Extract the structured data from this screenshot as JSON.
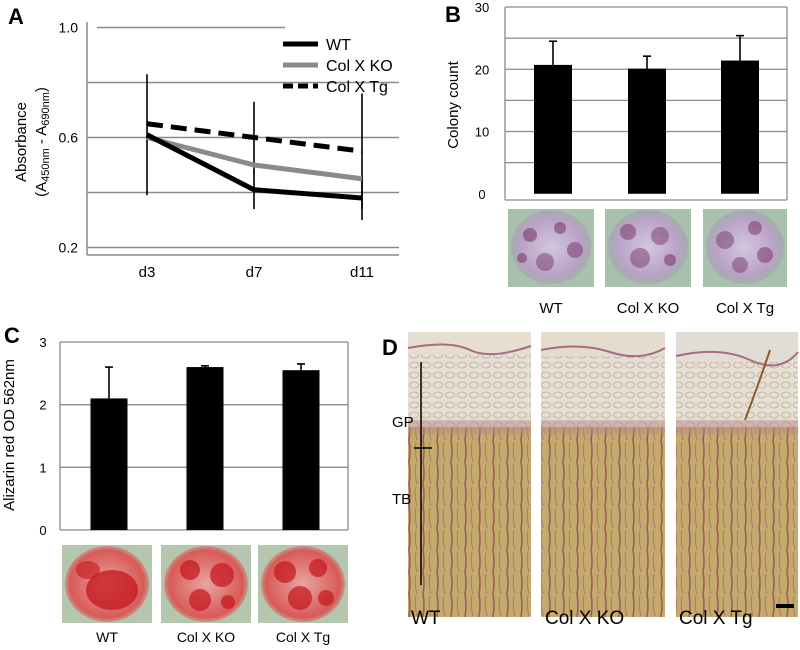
{
  "panels": {
    "a": "A",
    "b": "B",
    "c": "C",
    "d": "D"
  },
  "chart_data": [
    {
      "type": "line",
      "panel": "A",
      "ylabel_main": "Absorbance",
      "ylabel_sub": {
        "A": "A",
        "s1": "450nm",
        "dash": " - A",
        "s2": "690nm",
        "close": ")",
        "open": "("
      },
      "categories": [
        "d3",
        "d7",
        "d11"
      ],
      "yticks": [
        "1.0",
        "0.6",
        "0.2"
      ],
      "ytick_values": [
        1.0,
        0.6,
        0.2
      ],
      "ylim": [
        0.18,
        1.02
      ],
      "gridlines": [
        1.0,
        0.8,
        0.6,
        0.4,
        0.2
      ],
      "series": [
        {
          "name": "WT",
          "values": [
            0.61,
            0.41,
            0.38
          ],
          "err": [
            0.22,
            0.07,
            0.08
          ],
          "color": "#000000",
          "style": "solid"
        },
        {
          "name": "Col X KO",
          "values": [
            0.6,
            0.5,
            0.45
          ],
          "err": [
            0,
            0,
            0
          ],
          "color": "#8a8a8a",
          "style": "solid"
        },
        {
          "name": "Col X Tg",
          "values": [
            0.65,
            0.6,
            0.55
          ],
          "err": [
            0,
            0.13,
            0.21
          ],
          "color": "#000000",
          "style": "dashed"
        }
      ],
      "legend_position": "top-right"
    },
    {
      "type": "bar",
      "panel": "B",
      "ylabel": "Colony count",
      "categories": [
        "WT",
        "Col X KO",
        "Col X Tg"
      ],
      "values": [
        20.7,
        20.1,
        21.4
      ],
      "err": [
        3.8,
        2.0,
        4.0
      ],
      "yticks": [
        "30",
        "20",
        "10",
        "0"
      ],
      "ytick_values": [
        30,
        20,
        10,
        0
      ],
      "ylim": [
        -1,
        30
      ],
      "gridlines": [
        30,
        25,
        20,
        15,
        10,
        5
      ]
    },
    {
      "type": "bar",
      "panel": "C",
      "ylabel": "Alizarin red OD 562nm",
      "categories": [
        "WT",
        "Col X KO",
        "Col X Tg"
      ],
      "values": [
        2.1,
        2.6,
        2.55
      ],
      "err": [
        0.5,
        0.02,
        0.1
      ],
      "yticks": [
        "3",
        "2",
        "1",
        "0"
      ],
      "ytick_values": [
        3,
        2,
        1,
        0
      ],
      "ylim": [
        0,
        3
      ],
      "gridlines": [
        3,
        2,
        1
      ]
    }
  ],
  "panel_b_images": [
    "WT",
    "Col X KO",
    "Col X Tg"
  ],
  "panel_c_images": [
    "WT",
    "Col X KO",
    "Col X Tg"
  ],
  "panel_d": {
    "labels": [
      "WT",
      "Col X KO",
      "Col X Tg"
    ],
    "zone_gp": "GP",
    "zone_tb": "TB"
  },
  "colors": {
    "stain_purple": "#7a3a6e",
    "alizarin_red": "#c4161c",
    "tissue_tan": "#c8b07a"
  }
}
